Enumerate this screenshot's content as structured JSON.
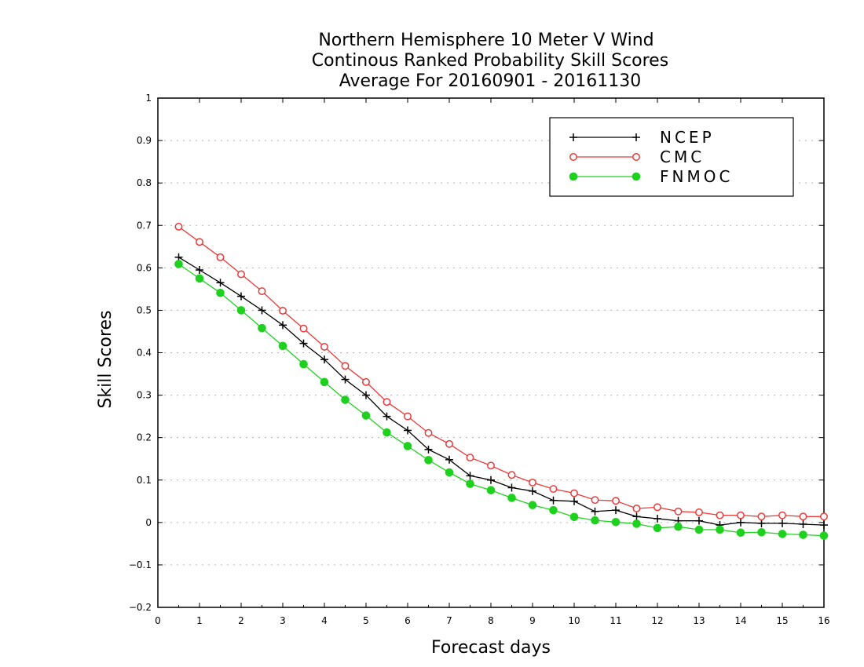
{
  "chart_data": {
    "type": "line",
    "title_lines": [
      "Northern Hemisphere 10 Meter V Wind",
      "Continous Ranked Probability Skill Scores",
      "Average For 20160901 - 20161130"
    ],
    "xlabel": "Forecast days",
    "ylabel": "Skill Scores",
    "xlim": [
      0,
      16
    ],
    "ylim": [
      -0.2,
      1
    ],
    "x_ticks": [
      "0",
      "1",
      "2",
      "3",
      "4",
      "5",
      "6",
      "7",
      "8",
      "9",
      "10",
      "11",
      "12",
      "13",
      "14",
      "15",
      "16"
    ],
    "y_ticks": [
      "−0.2",
      "−0.1",
      "0",
      "0.1",
      "0.2",
      "0.3",
      "0.4",
      "0.5",
      "0.6",
      "0.7",
      "0.8",
      "0.9",
      "1"
    ],
    "grid": true,
    "legend_position": "top-right",
    "x": [
      0.5,
      1,
      1.5,
      2,
      2.5,
      3,
      3.5,
      4,
      4.5,
      5,
      5.5,
      6,
      6.5,
      7,
      7.5,
      8,
      8.5,
      9,
      9.5,
      10,
      10.5,
      11,
      11.5,
      12,
      12.5,
      13,
      13.5,
      14,
      14.5,
      15,
      15.5,
      16
    ],
    "series": [
      {
        "name": "NCEP",
        "color": "#000000",
        "marker": "plus",
        "values": [
          0.625,
          0.595,
          0.565,
          0.533,
          0.5,
          0.465,
          0.422,
          0.384,
          0.337,
          0.3,
          0.25,
          0.217,
          0.172,
          0.148,
          0.11,
          0.1,
          0.082,
          0.074,
          0.052,
          0.05,
          0.026,
          0.029,
          0.014,
          0.009,
          0.004,
          0.004,
          -0.006,
          0.0,
          -0.002,
          -0.002,
          -0.004,
          -0.006
        ]
      },
      {
        "name": "CMC",
        "color": "#e83a3a",
        "marker": "circle-open",
        "values": [
          0.697,
          0.661,
          0.625,
          0.585,
          0.545,
          0.499,
          0.457,
          0.414,
          0.369,
          0.331,
          0.284,
          0.25,
          0.211,
          0.185,
          0.153,
          0.134,
          0.112,
          0.094,
          0.079,
          0.069,
          0.053,
          0.051,
          0.033,
          0.036,
          0.026,
          0.024,
          0.017,
          0.017,
          0.014,
          0.017,
          0.014,
          0.014
        ]
      },
      {
        "name": "FNMOC",
        "color": "#1fd11f",
        "marker": "circle-filled",
        "values": [
          0.609,
          0.575,
          0.541,
          0.5,
          0.458,
          0.416,
          0.373,
          0.331,
          0.289,
          0.252,
          0.212,
          0.18,
          0.147,
          0.118,
          0.091,
          0.076,
          0.058,
          0.041,
          0.029,
          0.013,
          0.005,
          0.001,
          -0.003,
          -0.013,
          -0.01,
          -0.017,
          -0.017,
          -0.024,
          -0.023,
          -0.027,
          -0.029,
          -0.031
        ]
      }
    ]
  }
}
